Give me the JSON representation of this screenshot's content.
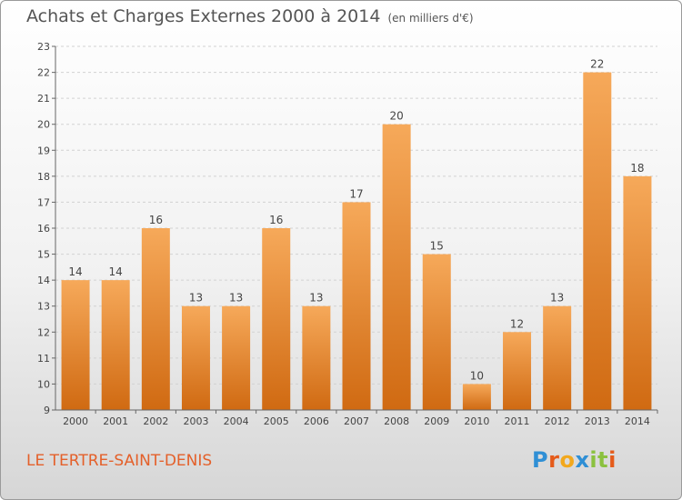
{
  "title": "Achats et Charges Externes 2000 à 2014",
  "unit_note": "(en milliers d'€)",
  "commune": "LE TERTRE-SAINT-DENIS",
  "logo": {
    "text": "Proxiti",
    "letters": [
      "P",
      "r",
      "o",
      "x",
      "i",
      "t",
      "i"
    ],
    "colors": [
      "#2f8fd5",
      "#e55b1a",
      "#f2a81d",
      "#2f8fd5",
      "#8bc13f",
      "#8bc13f",
      "#e55b1a"
    ]
  },
  "colors": {
    "bar_top": "#f6a95a",
    "bar_bottom": "#d06a12",
    "commune": "#e4602a"
  },
  "chart_data": {
    "type": "bar",
    "categories": [
      "2000",
      "2001",
      "2002",
      "2003",
      "2004",
      "2005",
      "2006",
      "2007",
      "2008",
      "2009",
      "2010",
      "2011",
      "2012",
      "2013",
      "2014"
    ],
    "values": [
      14,
      14,
      16,
      13,
      13,
      16,
      13,
      17,
      20,
      15,
      10,
      12,
      13,
      22,
      18
    ],
    "data_labels": [
      "14",
      "14",
      "16",
      "13",
      "13",
      "16",
      "13",
      "17",
      "20",
      "15",
      "10",
      "12",
      "13",
      "22",
      "18"
    ],
    "ylim": [
      9,
      23
    ],
    "yticks": [
      9,
      10,
      11,
      12,
      13,
      14,
      15,
      16,
      17,
      18,
      19,
      20,
      21,
      22,
      23
    ],
    "xlabel": "",
    "ylabel": "",
    "grid": true
  }
}
